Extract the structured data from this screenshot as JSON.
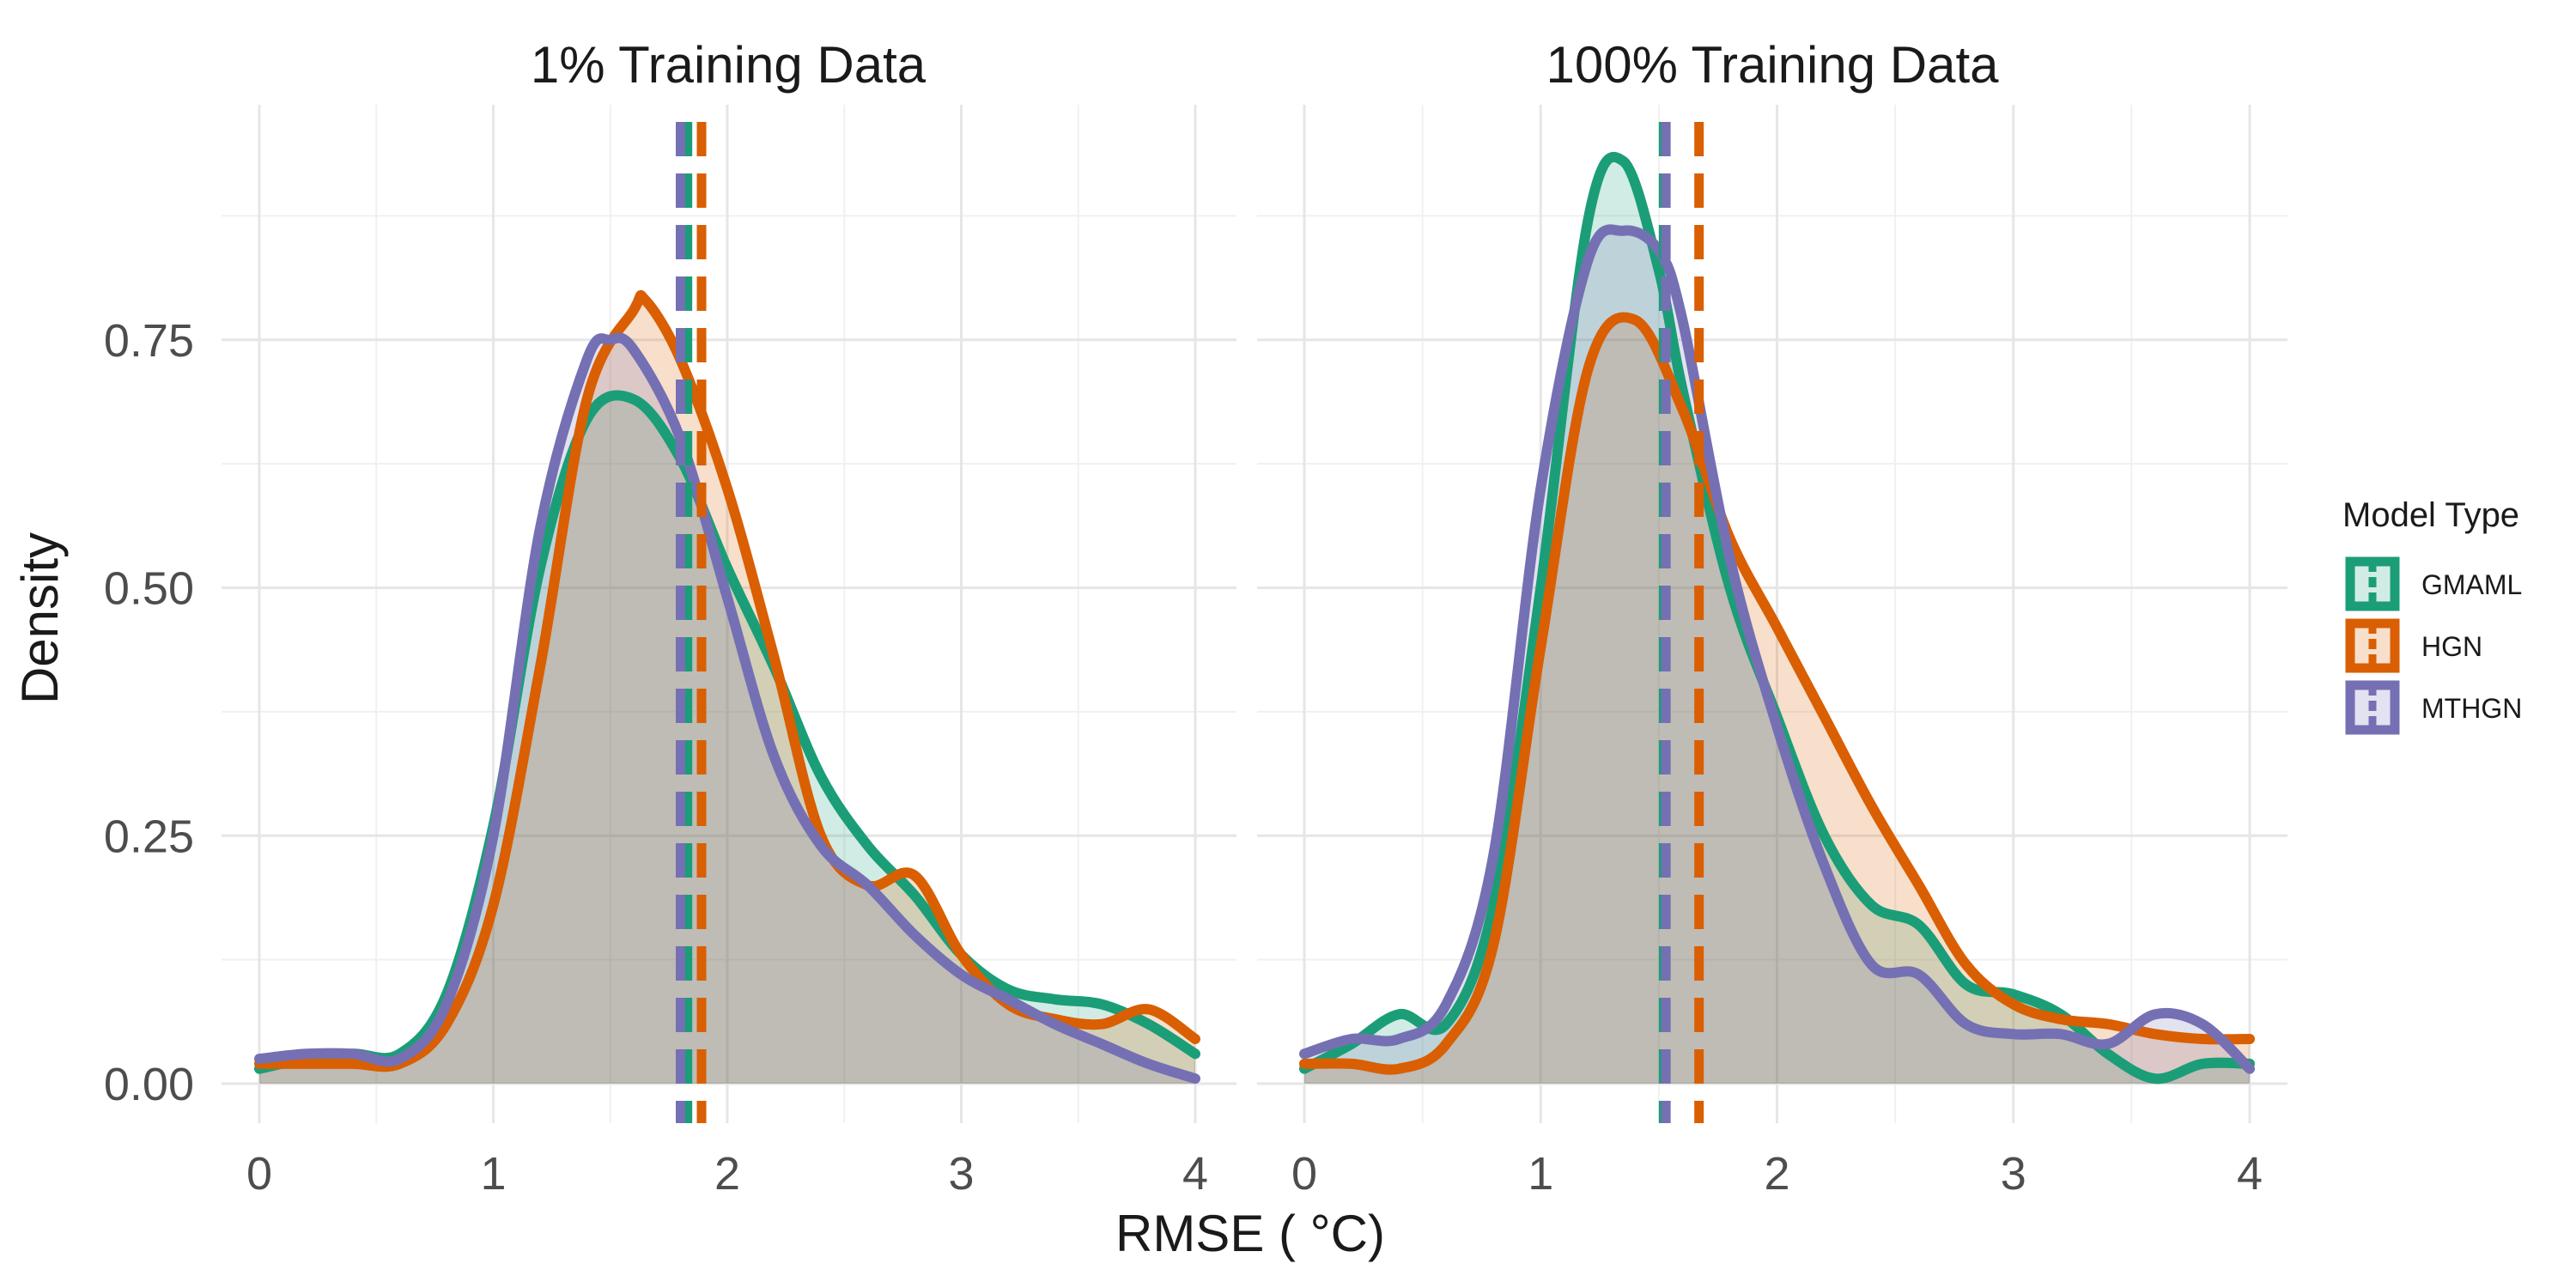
{
  "figure": {
    "xlabel": "RMSE ( °C)",
    "ylabel": "Density",
    "legend_title": "Model Type"
  },
  "chart_data": {
    "type": "area",
    "xlim": [
      0,
      4
    ],
    "ylim": [
      0,
      0.92
    ],
    "x_ticks": [
      "0",
      "1",
      "2",
      "3",
      "4"
    ],
    "y_ticks": [
      "0.00",
      "0.25",
      "0.50",
      "0.75"
    ],
    "grid": true,
    "legend_position": "right",
    "series_names": [
      "GMAML",
      "HGN",
      "MTHGN"
    ],
    "colors": {
      "GMAML": "#1b9e77",
      "HGN": "#d95f02",
      "MTHGN": "#7570b3"
    },
    "panels": [
      {
        "title": "1% Training Data",
        "means": {
          "GMAML": 1.83,
          "HGN": 1.89,
          "MTHGN": 1.8
        },
        "series": [
          {
            "name": "GMAML",
            "x": [
              0,
              0.2,
              0.4,
              0.6,
              0.8,
              1.0,
              1.2,
              1.4,
              1.6,
              1.8,
              2.0,
              2.2,
              2.4,
              2.6,
              2.8,
              3.0,
              3.2,
              3.4,
              3.6,
              3.8,
              4.0
            ],
            "y": [
              0.015,
              0.025,
              0.03,
              0.03,
              0.09,
              0.26,
              0.52,
              0.67,
              0.69,
              0.63,
              0.52,
              0.42,
              0.31,
              0.24,
              0.19,
              0.13,
              0.095,
              0.085,
              0.08,
              0.06,
              0.03
            ]
          },
          {
            "name": "HGN",
            "x": [
              0,
              0.2,
              0.4,
              0.6,
              0.8,
              1.0,
              1.2,
              1.4,
              1.6,
              1.65,
              1.8,
              2.0,
              2.2,
              2.4,
              2.6,
              2.8,
              3.0,
              3.2,
              3.4,
              3.6,
              3.8,
              4.0
            ],
            "y": [
              0.02,
              0.02,
              0.02,
              0.02,
              0.06,
              0.18,
              0.42,
              0.69,
              0.78,
              0.79,
              0.73,
              0.6,
              0.43,
              0.25,
              0.2,
              0.21,
              0.13,
              0.08,
              0.065,
              0.06,
              0.075,
              0.045
            ]
          },
          {
            "name": "MTHGN",
            "x": [
              0,
              0.2,
              0.4,
              0.6,
              0.8,
              1.0,
              1.2,
              1.4,
              1.5,
              1.6,
              1.8,
              2.0,
              2.2,
              2.4,
              2.6,
              2.8,
              3.0,
              3.2,
              3.4,
              3.6,
              3.8,
              4.0
            ],
            "y": [
              0.025,
              0.03,
              0.03,
              0.025,
              0.08,
              0.25,
              0.56,
              0.73,
              0.75,
              0.74,
              0.65,
              0.49,
              0.33,
              0.24,
              0.2,
              0.15,
              0.11,
              0.085,
              0.06,
              0.04,
              0.02,
              0.005
            ]
          }
        ]
      },
      {
        "title": "100% Training Data",
        "means": {
          "GMAML": 1.52,
          "HGN": 1.67,
          "MTHGN": 1.53
        },
        "series": [
          {
            "name": "GMAML",
            "x": [
              0,
              0.2,
              0.4,
              0.6,
              0.8,
              1.0,
              1.2,
              1.35,
              1.5,
              1.6,
              1.8,
              2.0,
              2.2,
              2.4,
              2.6,
              2.8,
              3.0,
              3.2,
              3.4,
              3.6,
              3.8,
              4.0
            ],
            "y": [
              0.015,
              0.04,
              0.07,
              0.06,
              0.18,
              0.5,
              0.87,
              0.93,
              0.82,
              0.7,
              0.5,
              0.37,
              0.25,
              0.18,
              0.16,
              0.1,
              0.09,
              0.07,
              0.03,
              0.005,
              0.02,
              0.02
            ]
          },
          {
            "name": "HGN",
            "x": [
              0,
              0.2,
              0.4,
              0.6,
              0.8,
              1.0,
              1.2,
              1.4,
              1.6,
              1.8,
              2.0,
              2.2,
              2.4,
              2.6,
              2.8,
              3.0,
              3.2,
              3.4,
              3.6,
              3.8,
              4.0
            ],
            "y": [
              0.02,
              0.02,
              0.015,
              0.04,
              0.14,
              0.44,
              0.72,
              0.77,
              0.68,
              0.55,
              0.46,
              0.37,
              0.28,
              0.2,
              0.12,
              0.08,
              0.065,
              0.06,
              0.05,
              0.045,
              0.045
            ]
          },
          {
            "name": "MTHGN",
            "x": [
              0,
              0.2,
              0.4,
              0.6,
              0.8,
              1.0,
              1.2,
              1.35,
              1.5,
              1.6,
              1.8,
              2.0,
              2.2,
              2.4,
              2.6,
              2.8,
              3.0,
              3.2,
              3.4,
              3.6,
              3.8,
              4.0
            ],
            "y": [
              0.03,
              0.045,
              0.045,
              0.08,
              0.23,
              0.6,
              0.83,
              0.86,
              0.84,
              0.77,
              0.53,
              0.36,
              0.22,
              0.12,
              0.11,
              0.06,
              0.05,
              0.05,
              0.04,
              0.07,
              0.06,
              0.015
            ]
          }
        ]
      }
    ]
  }
}
